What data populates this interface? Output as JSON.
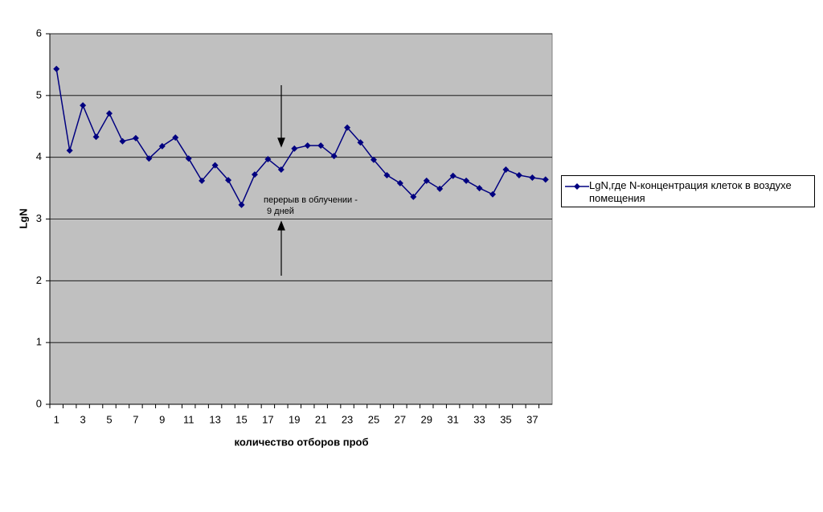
{
  "chart_data": {
    "type": "line",
    "x_label": "количество отборов проб",
    "y_label": "LgN",
    "categories": [
      "1",
      null,
      "3",
      null,
      "5",
      null,
      "7",
      null,
      "9",
      null,
      "11",
      null,
      "13",
      null,
      "15",
      null,
      "17",
      null,
      "19",
      null,
      "21",
      null,
      "23",
      null,
      "25",
      null,
      "27",
      null,
      "29",
      null,
      "31",
      null,
      "33",
      null,
      "35",
      null,
      "37",
      null
    ],
    "series": [
      {
        "name": "LgN,где N-концентрация клеток в воздухе помещения",
        "color": "#000080",
        "values": [
          5.43,
          4.11,
          4.84,
          4.33,
          4.71,
          4.26,
          4.31,
          3.98,
          4.18,
          4.32,
          3.98,
          3.62,
          3.87,
          3.63,
          3.23,
          3.72,
          3.97,
          3.8,
          4.14,
          4.19,
          4.19,
          4.02,
          4.48,
          4.24,
          3.96,
          3.71,
          3.58,
          3.36,
          3.62,
          3.49,
          3.7,
          3.62,
          3.5,
          3.4,
          3.8,
          3.71,
          3.67,
          3.64
        ]
      }
    ],
    "ylim": [
      0,
      6
    ],
    "yticks": [
      0,
      1,
      2,
      3,
      4,
      5,
      6
    ],
    "grid": true,
    "plot_background": "#c0c0c0",
    "annotations": [
      "перерыв в облучении  -",
      "9 дней"
    ]
  }
}
